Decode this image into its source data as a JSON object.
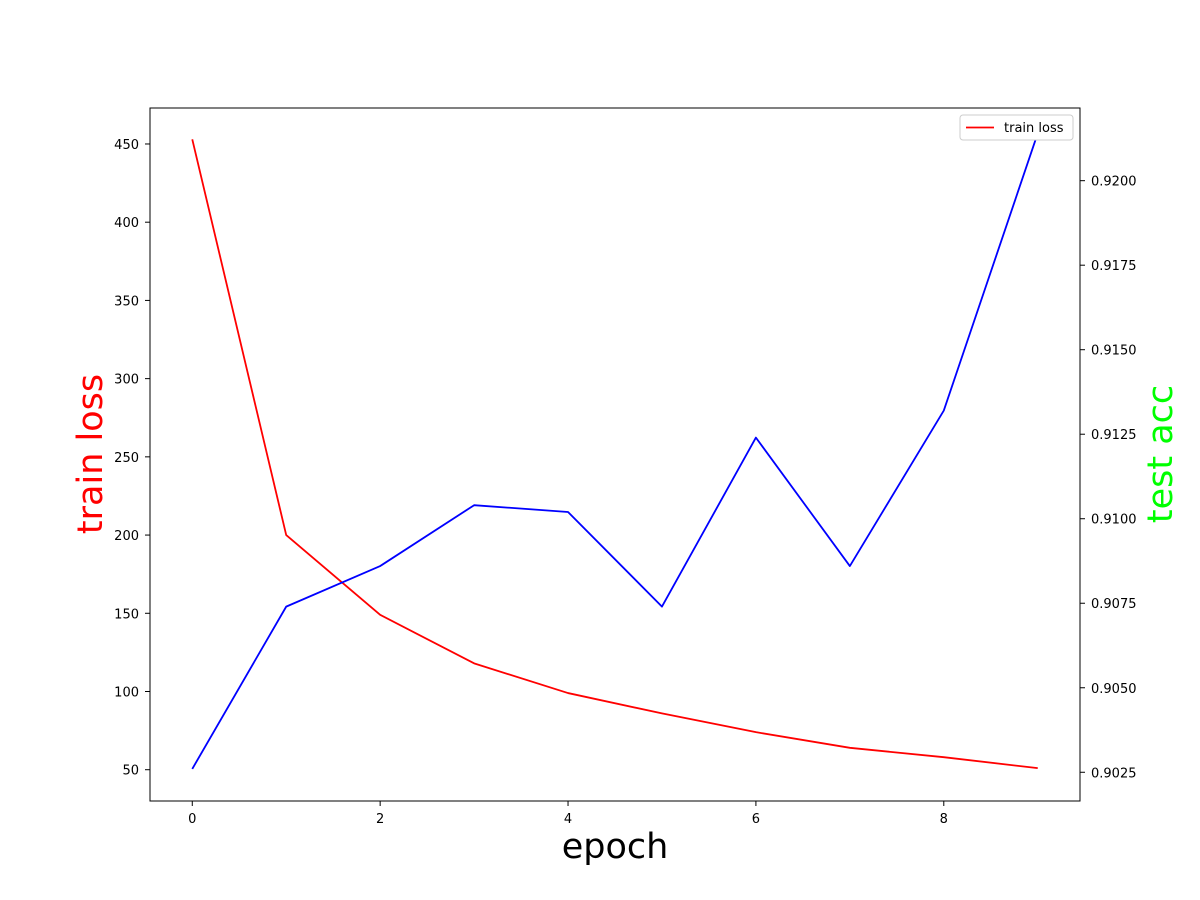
{
  "chart_data": {
    "type": "line",
    "xlabel": "epoch",
    "ylabel_left": "train loss",
    "ylabel_right": "test acc",
    "colors": {
      "train_loss": "#ff0000",
      "test_acc": "#0000ff",
      "ylabel_left": "#ff0000",
      "ylabel_right": "#00ff00"
    },
    "x": [
      0,
      1,
      2,
      3,
      4,
      5,
      6,
      7,
      8,
      9
    ],
    "xlim": [
      -0.45,
      9.45
    ],
    "x_ticks": [
      0,
      2,
      4,
      6,
      8
    ],
    "ylim_left": [
      30,
      473
    ],
    "y_ticks_left": [
      50,
      100,
      150,
      200,
      250,
      300,
      350,
      400,
      450
    ],
    "ylim_right": [
      0.90165,
      0.92215
    ],
    "y_ticks_right": [
      0.9025,
      0.905,
      0.9075,
      0.91,
      0.9125,
      0.915,
      0.9175,
      0.92
    ],
    "y_tick_labels_right": [
      "0.9025",
      "0.9050",
      "0.9075",
      "0.9100",
      "0.9125",
      "0.9150",
      "0.9175",
      "0.9200"
    ],
    "series": [
      {
        "name": "train loss",
        "axis": "left",
        "values": [
          453,
          200,
          149,
          118,
          99,
          86,
          74,
          64,
          58,
          51
        ]
      },
      {
        "axis": "right",
        "values": [
          0.9026,
          0.9074,
          0.9086,
          0.9104,
          0.9102,
          0.9074,
          0.9124,
          0.9086,
          0.9132,
          0.9214
        ]
      }
    ],
    "legend": {
      "position": "top-right",
      "entries": [
        "train loss"
      ]
    },
    "grid": false
  }
}
